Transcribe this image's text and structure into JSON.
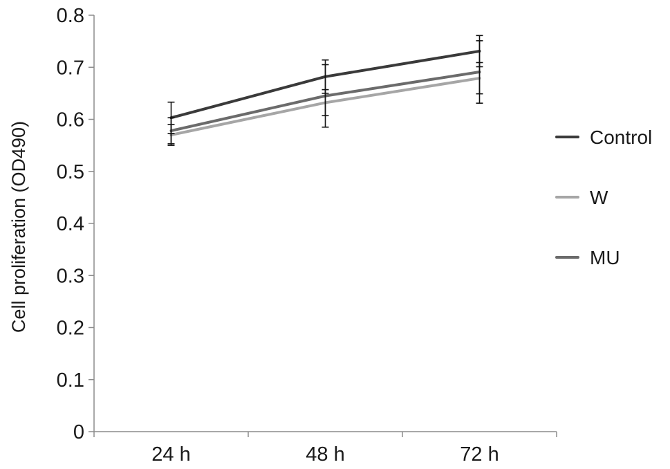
{
  "chart_data": {
    "type": "line",
    "categories": [
      "24 h",
      "48 h",
      "72 h"
    ],
    "ylabel": "Cell proliferation (OD490)",
    "ylim": [
      0,
      0.8
    ],
    "yticks": [
      "0",
      "0.1",
      "0.2",
      "0.3",
      "0.4",
      "0.5",
      "0.6",
      "0.7",
      "0.8"
    ],
    "grid": false,
    "legend_position": "right",
    "series": [
      {
        "name": "Control",
        "color": "#3a3a3a",
        "values": [
          0.603,
          0.682,
          0.731
        ],
        "errors": [
          0.03,
          0.032,
          0.03
        ]
      },
      {
        "name": "W",
        "color": "#a6a6a6",
        "values": [
          0.57,
          0.632,
          0.679
        ],
        "errors": [
          0.02,
          0.025,
          0.03
        ]
      },
      {
        "name": "MU",
        "color": "#6b6b6b",
        "values": [
          0.578,
          0.645,
          0.691
        ],
        "errors": [
          0.025,
          0.06,
          0.06
        ]
      }
    ]
  }
}
